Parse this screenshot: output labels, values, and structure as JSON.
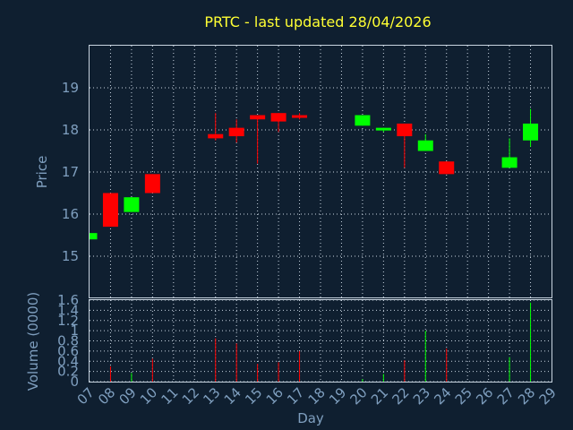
{
  "chart_data": {
    "type": "candlestick",
    "title": "PRTC - last updated 28/04/2026",
    "xlabel": "Day",
    "ylabel_price": "Price",
    "ylabel_volume": "Volume (0000)",
    "x_ticks": [
      "07",
      "08",
      "09",
      "10",
      "11",
      "12",
      "13",
      "14",
      "15",
      "16",
      "17",
      "18",
      "19",
      "20",
      "21",
      "22",
      "23",
      "24",
      "25",
      "26",
      "27",
      "28",
      "29"
    ],
    "price_ylim": [
      14.0,
      20.0
    ],
    "price_ticks": [
      "15",
      "16",
      "17",
      "18",
      "19"
    ],
    "volume_ylim": [
      0,
      1.6
    ],
    "volume_ticks": [
      "0",
      "0.2",
      "0.4",
      "0.6",
      "0.8",
      "1",
      "1.2",
      "1.4",
      "1.6"
    ],
    "colors": {
      "up": "#00ff00",
      "down": "#ff0000",
      "title": "#ffff33",
      "axis_text": "#7f9fbf",
      "background": "#0f1f30"
    },
    "candles": [
      {
        "day": 7,
        "open": 15.4,
        "close": 15.55,
        "high": 15.55,
        "low": 15.4,
        "volume": 0.0
      },
      {
        "day": 8,
        "open": 16.5,
        "close": 15.7,
        "high": 16.5,
        "low": 15.7,
        "volume": 0.3
      },
      {
        "day": 9,
        "open": 16.05,
        "close": 16.4,
        "high": 16.4,
        "low": 16.05,
        "volume": 0.17
      },
      {
        "day": 10,
        "open": 16.95,
        "close": 16.5,
        "high": 16.95,
        "low": 16.5,
        "volume": 0.45
      },
      {
        "day": 13,
        "open": 17.9,
        "close": 17.8,
        "high": 18.4,
        "low": 17.75,
        "volume": 0.85
      },
      {
        "day": 14,
        "open": 18.05,
        "close": 17.85,
        "high": 18.25,
        "low": 17.7,
        "volume": 0.75
      },
      {
        "day": 15,
        "open": 18.35,
        "close": 18.25,
        "high": 18.35,
        "low": 17.2,
        "volume": 0.35
      },
      {
        "day": 16,
        "open": 18.4,
        "close": 18.2,
        "high": 18.4,
        "low": 17.95,
        "volume": 0.38
      },
      {
        "day": 17,
        "open": 18.35,
        "close": 18.3,
        "high": 18.4,
        "low": 18.25,
        "volume": 0.6
      },
      {
        "day": 20,
        "open": 18.1,
        "close": 18.35,
        "high": 18.35,
        "low": 18.1,
        "volume": 0.05
      },
      {
        "day": 21,
        "open": 18.0,
        "close": 18.05,
        "high": 18.05,
        "low": 17.95,
        "volume": 0.15
      },
      {
        "day": 22,
        "open": 18.15,
        "close": 17.85,
        "high": 18.15,
        "low": 17.1,
        "volume": 0.42
      },
      {
        "day": 23,
        "open": 17.5,
        "close": 17.75,
        "high": 17.9,
        "low": 17.5,
        "volume": 1.0
      },
      {
        "day": 24,
        "open": 17.25,
        "close": 16.95,
        "high": 17.25,
        "low": 16.95,
        "volume": 0.65
      },
      {
        "day": 27,
        "open": 17.1,
        "close": 17.35,
        "high": 17.8,
        "low": 17.1,
        "volume": 0.48
      },
      {
        "day": 28,
        "open": 17.75,
        "close": 18.15,
        "high": 18.5,
        "low": 17.6,
        "volume": 1.55
      }
    ]
  }
}
